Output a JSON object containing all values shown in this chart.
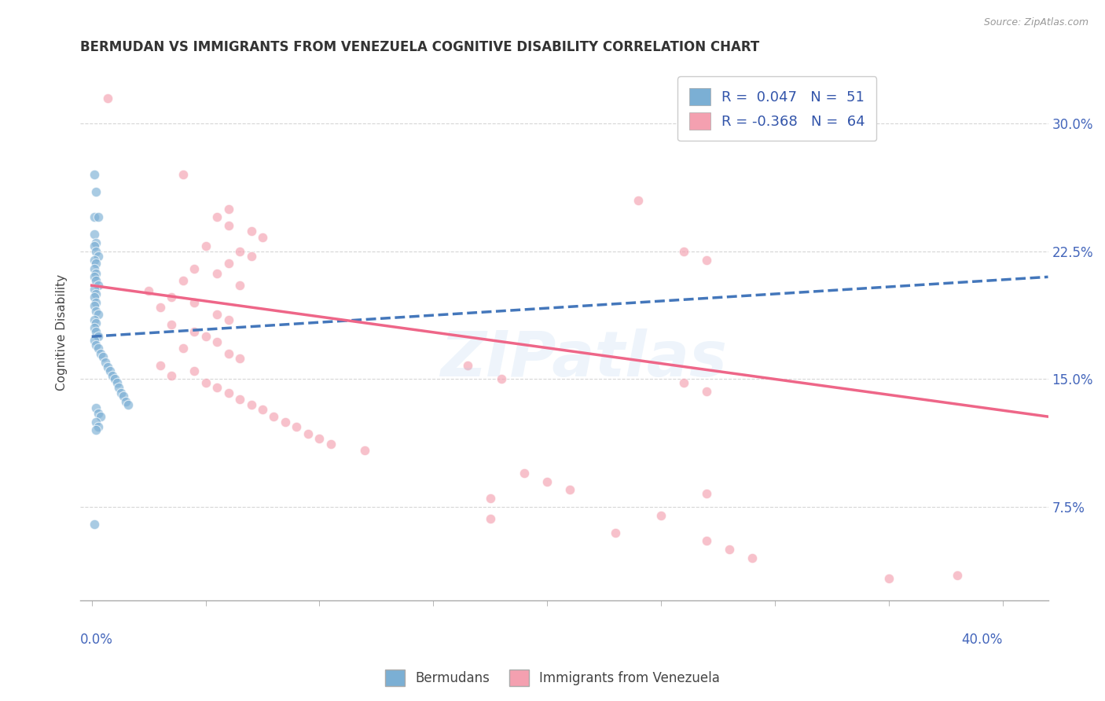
{
  "title": "BERMUDAN VS IMMIGRANTS FROM VENEZUELA COGNITIVE DISABILITY CORRELATION CHART",
  "source": "Source: ZipAtlas.com",
  "ylabel": "Cognitive Disability",
  "yticks": [
    "7.5%",
    "15.0%",
    "22.5%",
    "30.0%"
  ],
  "ytick_vals": [
    0.075,
    0.15,
    0.225,
    0.3
  ],
  "xlim": [
    -0.005,
    0.42
  ],
  "ylim": [
    0.02,
    0.335
  ],
  "watermark": "ZIPatlas",
  "blue_color": "#7bafd4",
  "pink_color": "#f4a0b0",
  "blue_scatter": [
    [
      0.001,
      0.27
    ],
    [
      0.002,
      0.26
    ],
    [
      0.001,
      0.245
    ],
    [
      0.003,
      0.245
    ],
    [
      0.001,
      0.235
    ],
    [
      0.002,
      0.23
    ],
    [
      0.001,
      0.228
    ],
    [
      0.002,
      0.225
    ],
    [
      0.003,
      0.222
    ],
    [
      0.001,
      0.22
    ],
    [
      0.002,
      0.218
    ],
    [
      0.001,
      0.215
    ],
    [
      0.002,
      0.212
    ],
    [
      0.001,
      0.21
    ],
    [
      0.002,
      0.208
    ],
    [
      0.003,
      0.205
    ],
    [
      0.001,
      0.203
    ],
    [
      0.002,
      0.2
    ],
    [
      0.001,
      0.198
    ],
    [
      0.002,
      0.195
    ],
    [
      0.001,
      0.193
    ],
    [
      0.002,
      0.19
    ],
    [
      0.003,
      0.188
    ],
    [
      0.001,
      0.185
    ],
    [
      0.002,
      0.183
    ],
    [
      0.001,
      0.18
    ],
    [
      0.002,
      0.178
    ],
    [
      0.003,
      0.175
    ],
    [
      0.001,
      0.173
    ],
    [
      0.002,
      0.17
    ],
    [
      0.003,
      0.168
    ],
    [
      0.004,
      0.165
    ],
    [
      0.005,
      0.163
    ],
    [
      0.006,
      0.16
    ],
    [
      0.007,
      0.157
    ],
    [
      0.008,
      0.155
    ],
    [
      0.009,
      0.152
    ],
    [
      0.01,
      0.15
    ],
    [
      0.011,
      0.148
    ],
    [
      0.012,
      0.145
    ],
    [
      0.013,
      0.142
    ],
    [
      0.014,
      0.14
    ],
    [
      0.015,
      0.137
    ],
    [
      0.016,
      0.135
    ],
    [
      0.002,
      0.133
    ],
    [
      0.003,
      0.13
    ],
    [
      0.004,
      0.128
    ],
    [
      0.002,
      0.125
    ],
    [
      0.003,
      0.122
    ],
    [
      0.002,
      0.12
    ],
    [
      0.001,
      0.065
    ]
  ],
  "pink_scatter": [
    [
      0.007,
      0.315
    ],
    [
      0.04,
      0.27
    ],
    [
      0.06,
      0.25
    ],
    [
      0.055,
      0.245
    ],
    [
      0.06,
      0.24
    ],
    [
      0.07,
      0.237
    ],
    [
      0.075,
      0.233
    ],
    [
      0.05,
      0.228
    ],
    [
      0.065,
      0.225
    ],
    [
      0.07,
      0.222
    ],
    [
      0.06,
      0.218
    ],
    [
      0.045,
      0.215
    ],
    [
      0.055,
      0.212
    ],
    [
      0.04,
      0.208
    ],
    [
      0.065,
      0.205
    ],
    [
      0.025,
      0.202
    ],
    [
      0.035,
      0.198
    ],
    [
      0.045,
      0.195
    ],
    [
      0.03,
      0.192
    ],
    [
      0.055,
      0.188
    ],
    [
      0.06,
      0.185
    ],
    [
      0.035,
      0.182
    ],
    [
      0.045,
      0.178
    ],
    [
      0.05,
      0.175
    ],
    [
      0.055,
      0.172
    ],
    [
      0.04,
      0.168
    ],
    [
      0.06,
      0.165
    ],
    [
      0.065,
      0.162
    ],
    [
      0.03,
      0.158
    ],
    [
      0.045,
      0.155
    ],
    [
      0.035,
      0.152
    ],
    [
      0.05,
      0.148
    ],
    [
      0.055,
      0.145
    ],
    [
      0.06,
      0.142
    ],
    [
      0.065,
      0.138
    ],
    [
      0.07,
      0.135
    ],
    [
      0.075,
      0.132
    ],
    [
      0.08,
      0.128
    ],
    [
      0.085,
      0.125
    ],
    [
      0.09,
      0.122
    ],
    [
      0.095,
      0.118
    ],
    [
      0.1,
      0.115
    ],
    [
      0.105,
      0.112
    ],
    [
      0.12,
      0.108
    ],
    [
      0.24,
      0.255
    ],
    [
      0.26,
      0.225
    ],
    [
      0.27,
      0.22
    ],
    [
      0.165,
      0.158
    ],
    [
      0.18,
      0.15
    ],
    [
      0.26,
      0.148
    ],
    [
      0.27,
      0.143
    ],
    [
      0.19,
      0.095
    ],
    [
      0.2,
      0.09
    ],
    [
      0.21,
      0.085
    ],
    [
      0.27,
      0.083
    ],
    [
      0.175,
      0.08
    ],
    [
      0.25,
      0.07
    ],
    [
      0.175,
      0.068
    ],
    [
      0.23,
      0.06
    ],
    [
      0.27,
      0.055
    ],
    [
      0.28,
      0.05
    ],
    [
      0.29,
      0.045
    ],
    [
      0.35,
      0.033
    ],
    [
      0.38,
      0.035
    ]
  ],
  "blue_trend_x": [
    0.0,
    0.42
  ],
  "blue_trend_y": [
    0.175,
    0.21
  ],
  "pink_trend_x": [
    0.0,
    0.42
  ],
  "pink_trend_y": [
    0.205,
    0.128
  ]
}
